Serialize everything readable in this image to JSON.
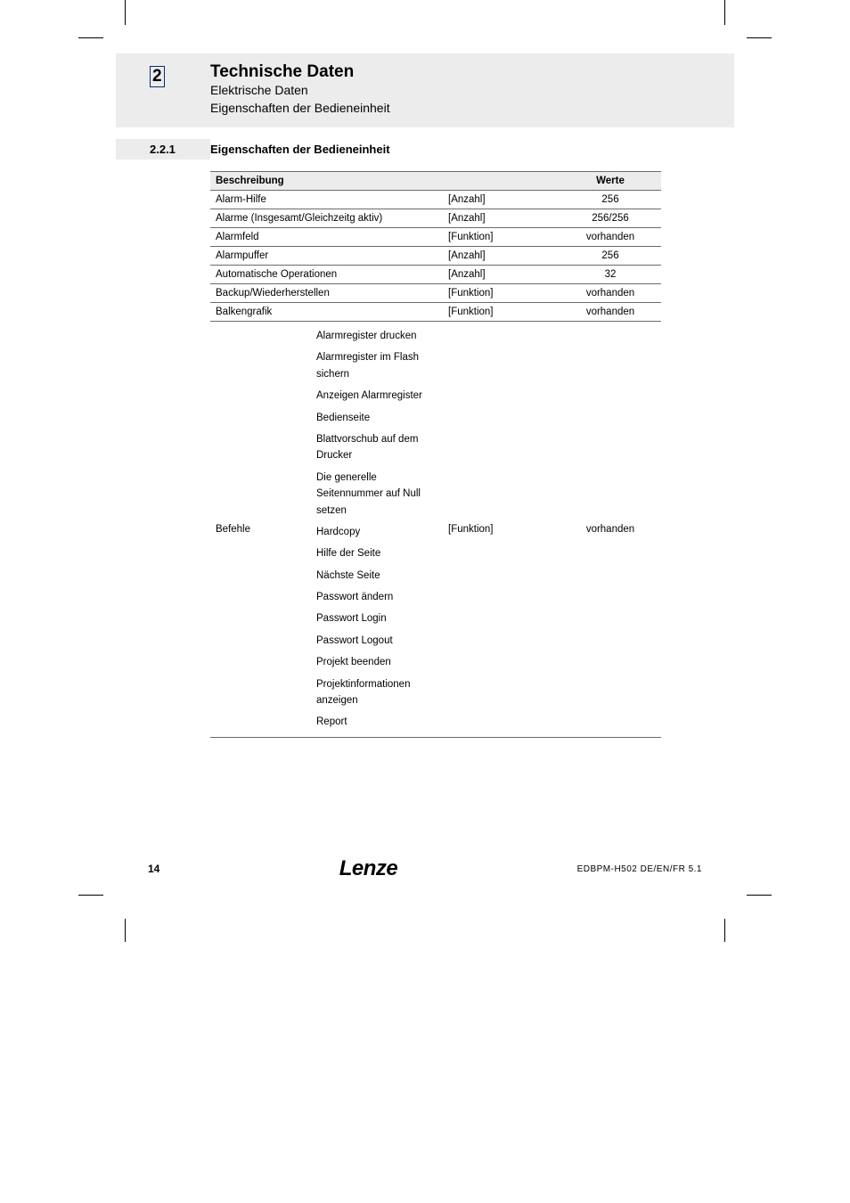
{
  "colors": {
    "band_bg": "#ececec",
    "chapter_box_border": "#0a2a7a",
    "table_border": "#6b6b6b",
    "text": "#000000",
    "page_bg": "#ffffff"
  },
  "header": {
    "chapter_number": "2",
    "chapter_title": "Technische Daten",
    "sub1": "Elektrische Daten",
    "sub2": "Eigenschaften der Bedieneinheit"
  },
  "section": {
    "number": "2.2.1",
    "title": "Eigenschaften der Bedieneinheit"
  },
  "table": {
    "header_col_wide": "Beschreibung",
    "header_col_werte": "Werte",
    "rows": [
      {
        "c1": "Alarm-Hilfe",
        "c2": "[Anzahl]",
        "c3": "256"
      },
      {
        "c1": "Alarme (Insgesamt/Gleichzeitg aktiv)",
        "c2": "[Anzahl]",
        "c3": "256/256"
      },
      {
        "c1": "Alarmfeld",
        "c2": "[Funktion]",
        "c3": "vorhanden"
      },
      {
        "c1": "Alarmpuffer",
        "c2": "[Anzahl]",
        "c3": "256"
      },
      {
        "c1": "Automatische Operationen",
        "c2": "[Anzahl]",
        "c3": "32"
      },
      {
        "c1": "Backup/Wiederherstellen",
        "c2": "[Funktion]",
        "c3": "vorhanden"
      },
      {
        "c1": "Balkengrafik",
        "c2": "[Funktion]",
        "c3": "vorhanden"
      }
    ],
    "befehle_row": {
      "c1": "Befehle",
      "list": [
        "Alarmregister drucken",
        "Alarmregister im Flash sichern",
        "Anzeigen Alarmregister",
        "Bedienseite",
        "Blattvorschub auf dem Drucker",
        "Die generelle Seitennummer auf Null setzen",
        "Hardcopy",
        "Hilfe der Seite",
        "Nächste Seite",
        "Passwort ändern",
        "Passwort Login",
        "Passwort Logout",
        "Projekt beenden",
        "Projektinformationen anzeigen",
        "Report"
      ],
      "c2": "[Funktion]",
      "c3": "vorhanden"
    }
  },
  "footer": {
    "page_number": "14",
    "logo_text": "Lenze",
    "doc_id": "EDBPM-H502  DE/EN/FR  5.1"
  },
  "typography": {
    "chapter_title_pt": 19,
    "section_title_pt": 13,
    "body_pt": 11.5,
    "footer_pt": 11
  }
}
